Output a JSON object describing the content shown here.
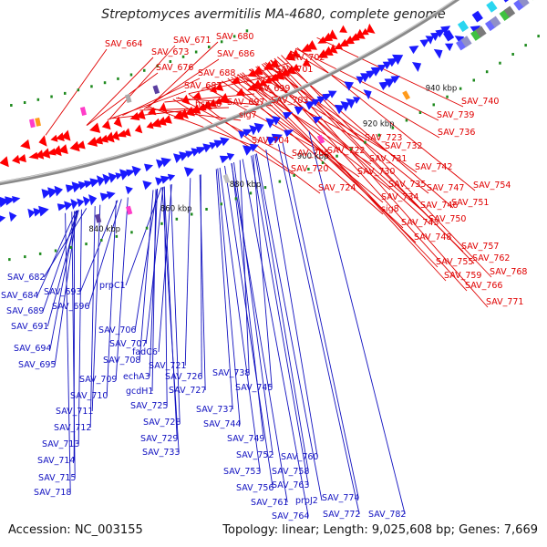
{
  "title": "Streptomyces avermitilis MA-4680, complete genome",
  "footer": {
    "accession": "Accession: NC_003155",
    "summary": "Topology: linear; Length: 9,025,608 bp; Genes: 7,669"
  },
  "colors": {
    "top_label": "#e00000",
    "bottom_label": "#1010c0",
    "forward_gene": "#ff0000",
    "reverse_gene": "#1a1aff",
    "backbone": "#8a8a8a",
    "tick_green": "#1e8a1e"
  },
  "ticks": [
    {
      "text": "840 kbp"
    },
    {
      "text": "860 kbp"
    },
    {
      "text": "880 kbp"
    },
    {
      "text": "900 kbp"
    },
    {
      "text": "920 kbp"
    },
    {
      "text": "940 kbp"
    }
  ],
  "top_labels": [
    "SAV_664",
    "SAV_671",
    "SAV_680",
    "SAV_673",
    "SAV_686",
    "SAV_676",
    "SAV_688",
    "SAV_687",
    "SAV_702",
    "SAV_701",
    "SAV_699",
    "hsp18",
    "SAV_697",
    "SAV_703",
    "sig7",
    "SAV_740",
    "SAV_739",
    "SAV_736",
    "SAV_723",
    "SAV_732",
    "SAV_722",
    "SAV_731",
    "SAV_742",
    "SAV_704",
    "SAV_705",
    "SAV_720",
    "SAV_730",
    "SAV_735",
    "SAV_747",
    "SAV_754",
    "SAV_724",
    "SAV_734",
    "SAV_746",
    "SAV_751",
    "sig8",
    "SAV_743",
    "SAV_750",
    "SAV_748",
    "SAV_757",
    "SAV_762",
    "SAV_755",
    "SAV_768",
    "SAV_759",
    "SAV_766",
    "SAV_771"
  ],
  "bottom_labels": [
    "SAV_682",
    "SAV_693",
    "SAV_684",
    "SAV_696",
    "SAV_689",
    "prpC1",
    "SAV_691",
    "SAV_694",
    "SAV_695",
    "SAV_706",
    "SAV_707",
    "SAV_708",
    "fadC6",
    "SAV_721",
    "SAV_709",
    "echA3",
    "SAV_726",
    "SAV_738",
    "SAV_710",
    "gcdH1",
    "SAV_727",
    "SAV_711",
    "SAV_725",
    "SAV_737",
    "SAV_745",
    "SAV_712",
    "SAV_728",
    "SAV_744",
    "SAV_713",
    "SAV_729",
    "SAV_714",
    "SAV_733",
    "SAV_749",
    "SAV_715",
    "SAV_752",
    "SAV_760",
    "SAV_718",
    "SAV_753",
    "SAV_758",
    "SAV_756",
    "SAV_763",
    "SAV_761",
    "prpJ2",
    "SAV_774",
    "SAV_764",
    "SAV_772",
    "SAV_782"
  ]
}
